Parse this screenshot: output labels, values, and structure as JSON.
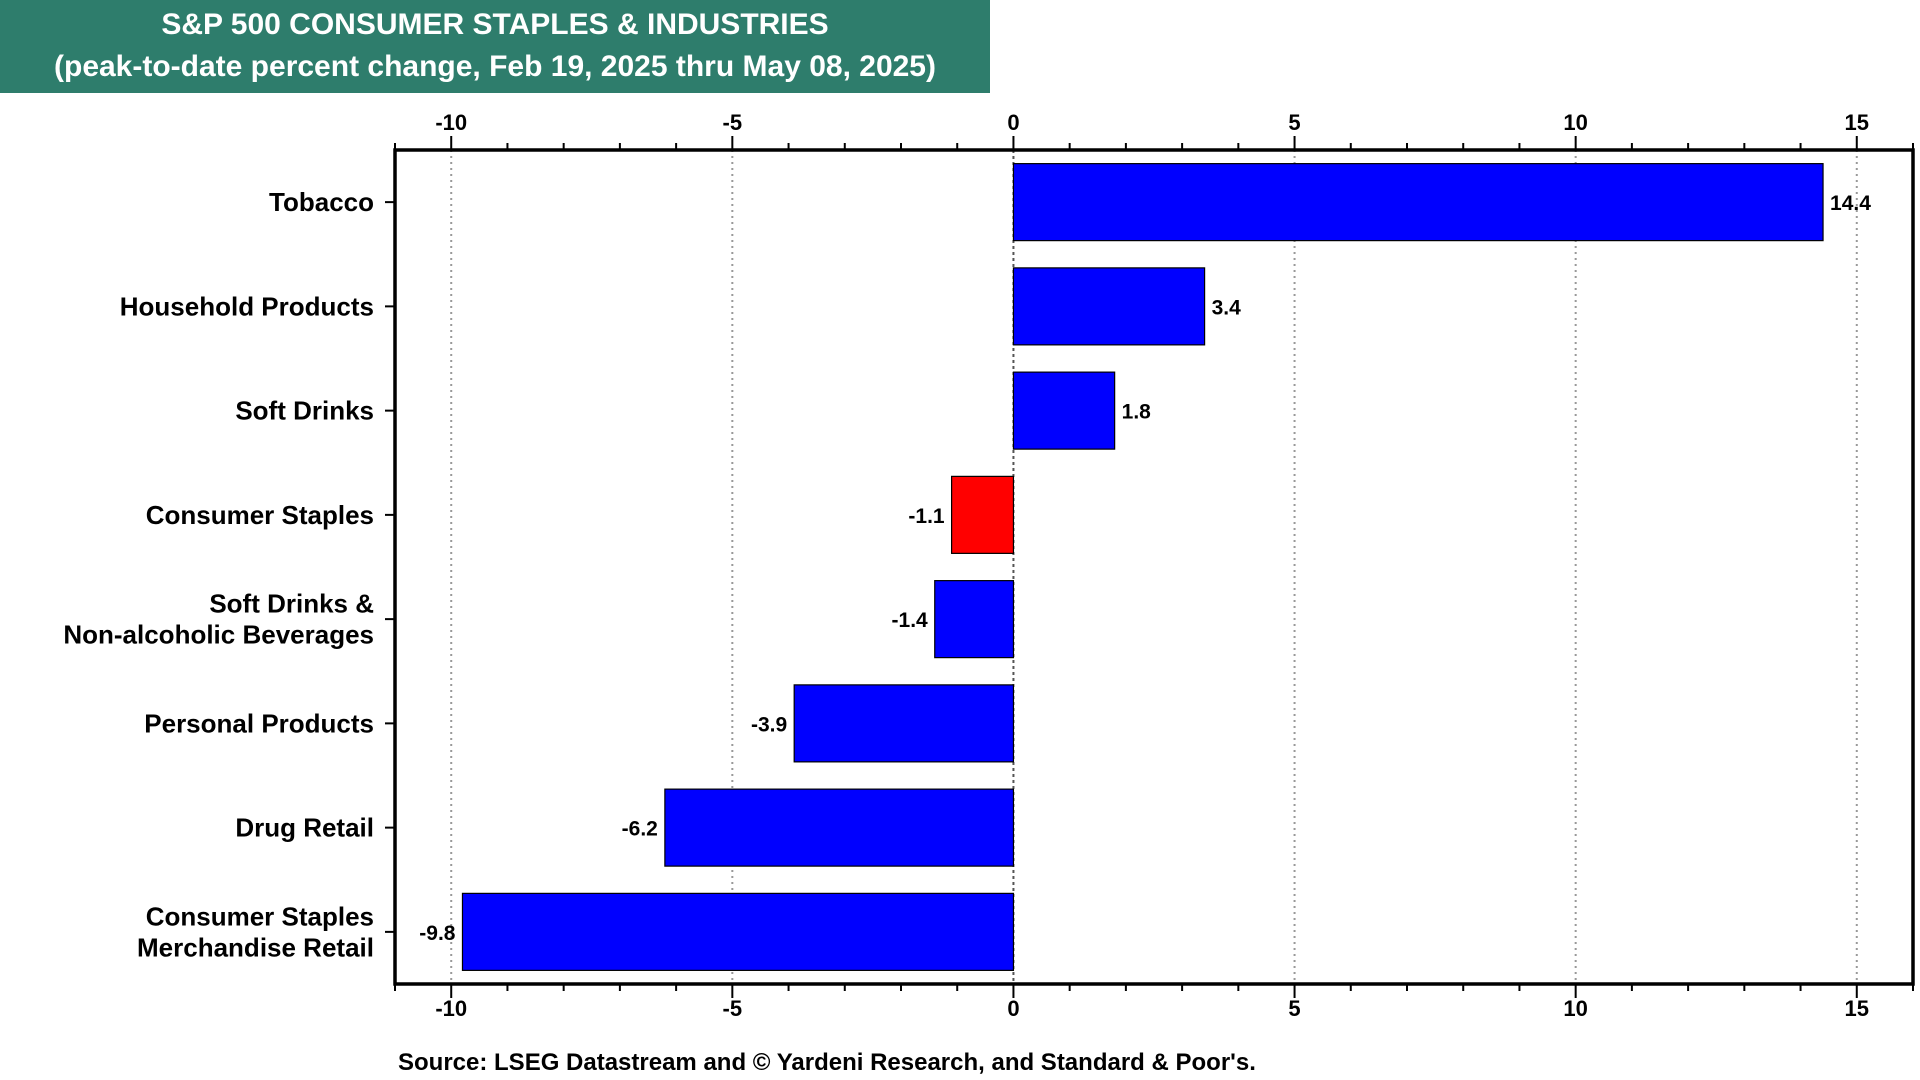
{
  "chart_data": {
    "type": "bar",
    "orientation": "horizontal",
    "title": "S&P 500 CONSUMER STAPLES & INDUSTRIES",
    "subtitle": "(peak-to-date percent change, Feb 19, 2025 thru May 08, 2025)",
    "categories": [
      [
        "Tobacco"
      ],
      [
        "Household Products"
      ],
      [
        "Soft Drinks"
      ],
      [
        "Consumer Staples"
      ],
      [
        "Soft Drinks &",
        "Non-alcoholic Beverages"
      ],
      [
        "Personal Products"
      ],
      [
        "Drug Retail"
      ],
      [
        "Consumer Staples",
        "Merchandise Retail"
      ]
    ],
    "values": [
      14.4,
      3.4,
      1.8,
      -1.1,
      -1.4,
      -3.9,
      -6.2,
      -9.8
    ],
    "value_labels": [
      "14.4",
      "3.4",
      "1.8",
      "-1.1",
      "-1.4",
      "-3.9",
      "-6.2",
      "-9.8"
    ],
    "bar_colors": [
      "#0000ff",
      "#0000ff",
      "#0000ff",
      "#ff0000",
      "#0000ff",
      "#0000ff",
      "#0000ff",
      "#0000ff"
    ],
    "highlight_color": "#ff0000",
    "bar_color": "#0000ff",
    "xlim": [
      -11,
      16
    ],
    "xticks": [
      -10,
      -5,
      0,
      5,
      10,
      15
    ],
    "xtick_labels": [
      "-10",
      "-5",
      "0",
      "5",
      "10",
      "15"
    ],
    "grid": "vertical dotted",
    "xlabel": "",
    "ylabel": ""
  },
  "header": {
    "title": "S&P 500 CONSUMER STAPLES & INDUSTRIES",
    "subtitle": "(peak-to-date percent change, Feb 19, 2025 thru May 08, 2025)",
    "background_color": "#2e7d6c"
  },
  "footer": {
    "source": "Source: LSEG Datastream and © Yardeni Research, and Standard & Poor's."
  }
}
